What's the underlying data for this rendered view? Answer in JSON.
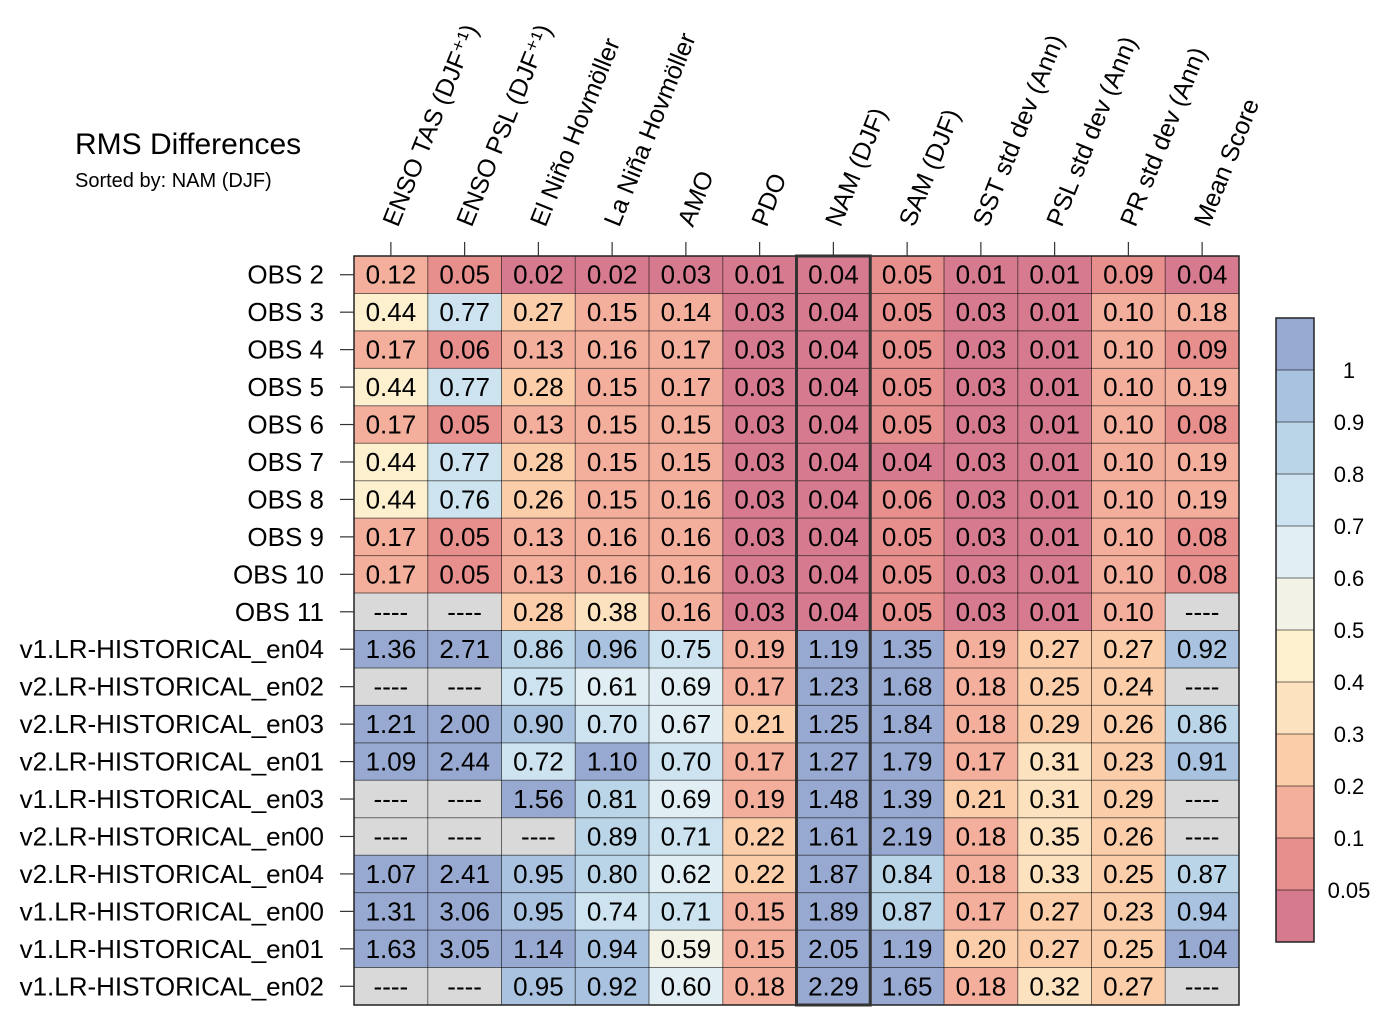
{
  "chart_data": {
    "type": "heatmap",
    "title": "RMS Differences",
    "subtitle": "Sorted by: NAM (DJF)",
    "columns": [
      "ENSO TAS (DJF⁺¹)",
      "ENSO PSL (DJF⁺¹)",
      "El Niño Hovmöller",
      "La Niña Hovmöller",
      "AMO",
      "PDO",
      "NAM (DJF)",
      "SAM (DJF)",
      "SST std dev (Ann)",
      "PSL std dev (Ann)",
      "PR std dev (Ann)",
      "Mean Score"
    ],
    "rows": [
      "OBS 2",
      "OBS 3",
      "OBS 4",
      "OBS 5",
      "OBS 6",
      "OBS 7",
      "OBS 8",
      "OBS 9",
      "OBS 10",
      "OBS 11",
      "v1.LR-HISTORICAL_en04",
      "v2.LR-HISTORICAL_en02",
      "v2.LR-HISTORICAL_en03",
      "v2.LR-HISTORICAL_en01",
      "v1.LR-HISTORICAL_en03",
      "v2.LR-HISTORICAL_en00",
      "v2.LR-HISTORICAL_en04",
      "v1.LR-HISTORICAL_en00",
      "v1.LR-HISTORICAL_en01",
      "v1.LR-HISTORICAL_en02"
    ],
    "values": [
      [
        0.12,
        0.05,
        0.02,
        0.02,
        0.03,
        0.01,
        0.04,
        0.05,
        0.01,
        0.01,
        0.09,
        0.04
      ],
      [
        0.44,
        0.77,
        0.27,
        0.15,
        0.14,
        0.03,
        0.04,
        0.05,
        0.03,
        0.01,
        0.1,
        0.18
      ],
      [
        0.17,
        0.06,
        0.13,
        0.16,
        0.17,
        0.03,
        0.04,
        0.05,
        0.03,
        0.01,
        0.1,
        0.09
      ],
      [
        0.44,
        0.77,
        0.28,
        0.15,
        0.17,
        0.03,
        0.04,
        0.05,
        0.03,
        0.01,
        0.1,
        0.19
      ],
      [
        0.17,
        0.05,
        0.13,
        0.15,
        0.15,
        0.03,
        0.04,
        0.05,
        0.03,
        0.01,
        0.1,
        0.08
      ],
      [
        0.44,
        0.77,
        0.28,
        0.15,
        0.15,
        0.03,
        0.04,
        0.04,
        0.03,
        0.01,
        0.1,
        0.19
      ],
      [
        0.44,
        0.76,
        0.26,
        0.15,
        0.16,
        0.03,
        0.04,
        0.06,
        0.03,
        0.01,
        0.1,
        0.19
      ],
      [
        0.17,
        0.05,
        0.13,
        0.16,
        0.16,
        0.03,
        0.04,
        0.05,
        0.03,
        0.01,
        0.1,
        0.08
      ],
      [
        0.17,
        0.05,
        0.13,
        0.16,
        0.16,
        0.03,
        0.04,
        0.05,
        0.03,
        0.01,
        0.1,
        0.08
      ],
      [
        null,
        null,
        0.28,
        0.38,
        0.16,
        0.03,
        0.04,
        0.05,
        0.03,
        0.01,
        0.1,
        null
      ],
      [
        1.36,
        2.71,
        0.86,
        0.96,
        0.75,
        0.19,
        1.19,
        1.35,
        0.19,
        0.27,
        0.27,
        0.92
      ],
      [
        null,
        null,
        0.75,
        0.61,
        0.69,
        0.17,
        1.23,
        1.68,
        0.18,
        0.25,
        0.24,
        null
      ],
      [
        1.21,
        2.0,
        0.9,
        0.7,
        0.67,
        0.21,
        1.25,
        1.84,
        0.18,
        0.29,
        0.26,
        0.86
      ],
      [
        1.09,
        2.44,
        0.72,
        1.1,
        0.7,
        0.17,
        1.27,
        1.79,
        0.17,
        0.31,
        0.23,
        0.91
      ],
      [
        null,
        null,
        1.56,
        0.81,
        0.69,
        0.19,
        1.48,
        1.39,
        0.21,
        0.31,
        0.29,
        null
      ],
      [
        null,
        null,
        null,
        0.89,
        0.71,
        0.22,
        1.61,
        2.19,
        0.18,
        0.35,
        0.26,
        null
      ],
      [
        1.07,
        2.41,
        0.95,
        0.8,
        0.62,
        0.22,
        1.87,
        0.84,
        0.18,
        0.33,
        0.25,
        0.87
      ],
      [
        1.31,
        3.06,
        0.95,
        0.74,
        0.71,
        0.15,
        1.89,
        0.87,
        0.17,
        0.27,
        0.23,
        0.94
      ],
      [
        1.63,
        3.05,
        1.14,
        0.94,
        0.59,
        0.15,
        2.05,
        1.19,
        0.2,
        0.27,
        0.25,
        1.04
      ],
      [
        null,
        null,
        0.95,
        0.92,
        0.6,
        0.18,
        2.29,
        1.65,
        0.18,
        0.32,
        0.27,
        null
      ]
    ],
    "missing_label": "----",
    "highlight_column_index": 6,
    "grid": true,
    "colorbar": {
      "placement": "right",
      "levels": [
        0.05,
        0.1,
        0.2,
        0.3,
        0.4,
        0.5,
        0.6,
        0.7,
        0.8,
        0.9,
        1
      ],
      "colors": [
        "#d67b8f",
        "#e78f8c",
        "#f4ae9c",
        "#fbcda9",
        "#fde2bf",
        "#fdf0cf",
        "#f3f2e6",
        "#e1eff4",
        "#cde3ef",
        "#bbd5e8",
        "#a8c2df",
        "#97a9d0"
      ],
      "missing_color": "#d9d9d9"
    }
  }
}
